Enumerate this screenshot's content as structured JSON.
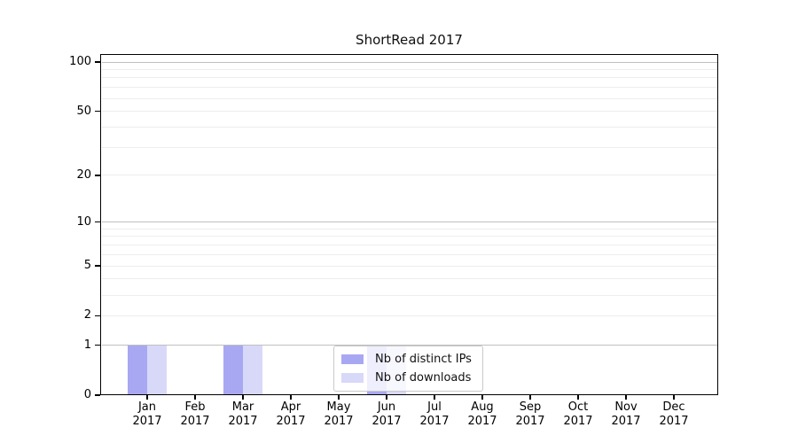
{
  "chart_data": {
    "type": "bar",
    "title": "ShortRead 2017",
    "x_tick_months": [
      "Jan",
      "Feb",
      "Mar",
      "Apr",
      "May",
      "Jun",
      "Jul",
      "Aug",
      "Sep",
      "Oct",
      "Nov",
      "Dec"
    ],
    "x_tick_year": "2017",
    "series": [
      {
        "name": "Nb of distinct IPs",
        "color": "#a8a8f2",
        "values": [
          1,
          0,
          1,
          0,
          0,
          1,
          0,
          0,
          0,
          0,
          0,
          0
        ]
      },
      {
        "name": "Nb of downloads",
        "color": "#d8d8f9",
        "values": [
          1,
          0,
          1,
          0,
          0,
          1,
          0,
          0,
          0,
          0,
          0,
          0
        ]
      }
    ],
    "y_scale": "log1p",
    "y_tick_labels": [
      "0",
      "1",
      "2",
      "5",
      "10",
      "20",
      "50",
      "100"
    ],
    "y_ticks": [
      0,
      1,
      2,
      5,
      10,
      20,
      50,
      100
    ],
    "y_gridline_values": [
      1,
      2,
      3,
      4,
      5,
      6,
      7,
      8,
      9,
      10,
      20,
      30,
      40,
      50,
      60,
      70,
      80,
      90,
      100
    ],
    "y_major_gridlines": [
      1,
      10,
      100
    ],
    "ylim": [
      0,
      110
    ],
    "grid": "horizontal",
    "legend_position": "inside-bottom-center",
    "colors": {
      "axis": "#000000",
      "grid_major": "#bfbfbf",
      "grid_minor": "#ededed",
      "legend_border": "#c9c9c9",
      "background": "#ffffff"
    }
  }
}
